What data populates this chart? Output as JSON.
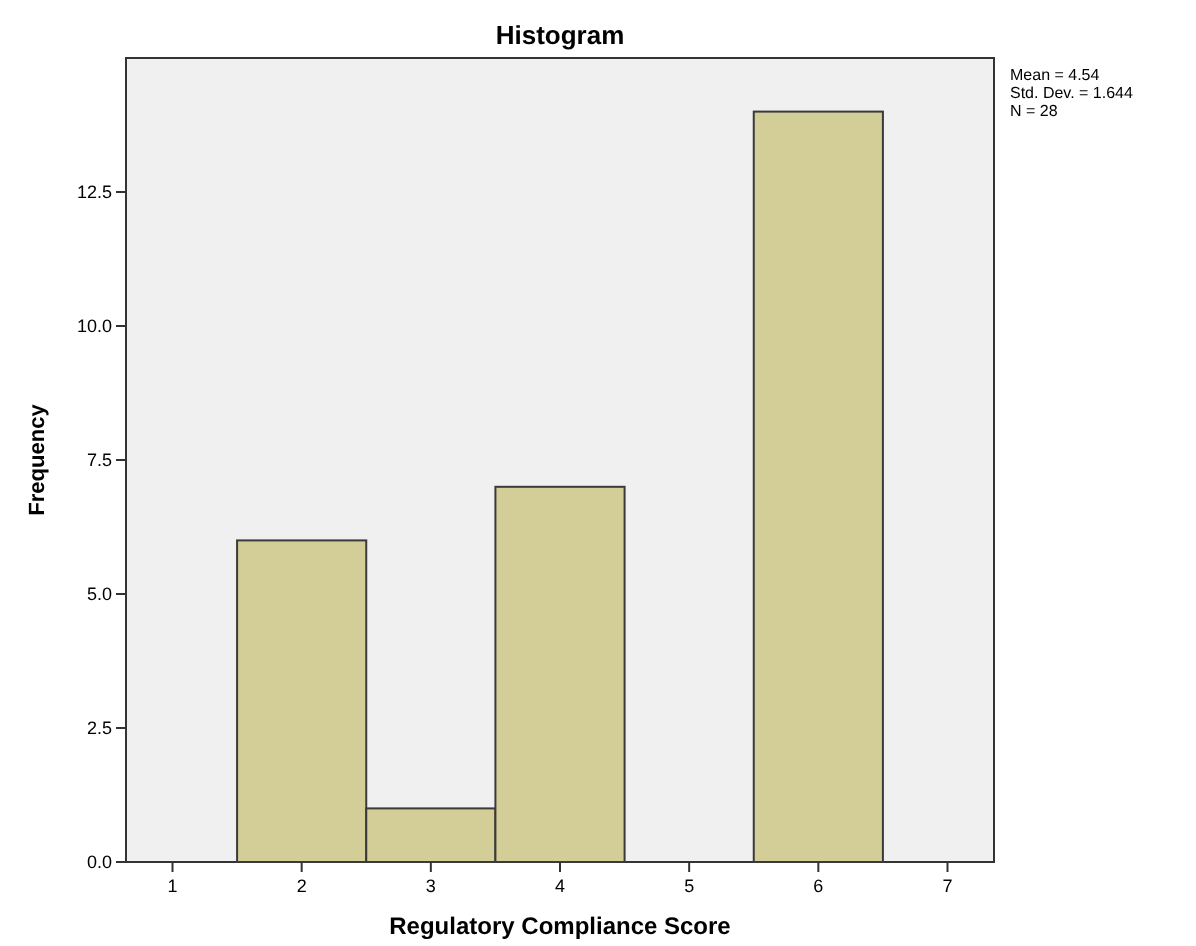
{
  "chart_data": {
    "type": "histogram",
    "title": "Histogram",
    "xlabel": "Regulatory Compliance Score",
    "ylabel": "Frequency",
    "bins": [
      1.5,
      2.5,
      3.5,
      4.5,
      5.5,
      6.5
    ],
    "values": [
      6,
      1,
      7,
      0,
      14
    ],
    "color": "#d3ce97",
    "xlim": [
      0.64,
      7.36
    ],
    "xticks": [
      1,
      2,
      3,
      4,
      5,
      6,
      7
    ],
    "ylim": [
      0,
      15
    ],
    "yticks": [
      {
        "value": 0,
        "label": "0.0"
      },
      {
        "value": 2.5,
        "label": "2.5"
      },
      {
        "value": 5,
        "label": "5.0"
      },
      {
        "value": 7.5,
        "label": "7.5"
      },
      {
        "value": 10,
        "label": "10.0"
      },
      {
        "value": 12.5,
        "label": "12.5"
      }
    ],
    "annotations": [
      "Mean = 4.54",
      "Std. Dev. = 1.644",
      "N = 28"
    ]
  }
}
